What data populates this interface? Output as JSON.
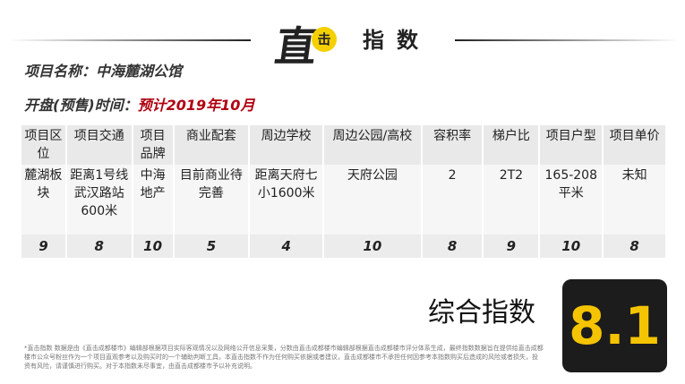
{
  "header": {
    "logo_text": "直击",
    "title": "指数"
  },
  "project": {
    "name_label": "项目名称：",
    "name": "中海麓湖公馆",
    "open_label": "开盘(预售)时间：",
    "open_value": "预计2019年10月"
  },
  "table": {
    "headers": [
      "项目区位",
      "项目交通",
      "项目品牌",
      "商业配套",
      "周边学校",
      "周边公园/高校",
      "容积率",
      "梯户比",
      "项目户型",
      "项目单价"
    ],
    "values": [
      "麓湖板块",
      "距离1号线武汉路站600米",
      "中海地产",
      "目前商业待完善",
      "距离天府七小1600米",
      "天府公园",
      "2",
      "2T2",
      "165-208平米",
      "未知"
    ],
    "scores": [
      "9",
      "8",
      "10",
      "5",
      "4",
      "10",
      "8",
      "9",
      "10",
      "8"
    ]
  },
  "total": {
    "label": "综合指数",
    "score": "8.1",
    "badge_bg": "#1c1c1c",
    "score_color": "#f5c400"
  },
  "footnote": "*直击指数 数据是由《直击成都楼市》编辑部根据项目实际客观情况以及网络公开信息采集，分数由直击成都楼市编辑部根据直击成都楼市评分体系生成，最终指数数据旨在提供给直击成都楼市公众号粉丝作为一个项目直观参考以及购买时的一个辅助判断工具，本直击指数不作为任何购买依据或者建议，直击成都楼市不承担任何因参考本指数购买后造成的风险或者损失，投资有风险，请谨慎进行购买。对于本指数未尽事宜，由直击成都楼市予以补充说明。"
}
